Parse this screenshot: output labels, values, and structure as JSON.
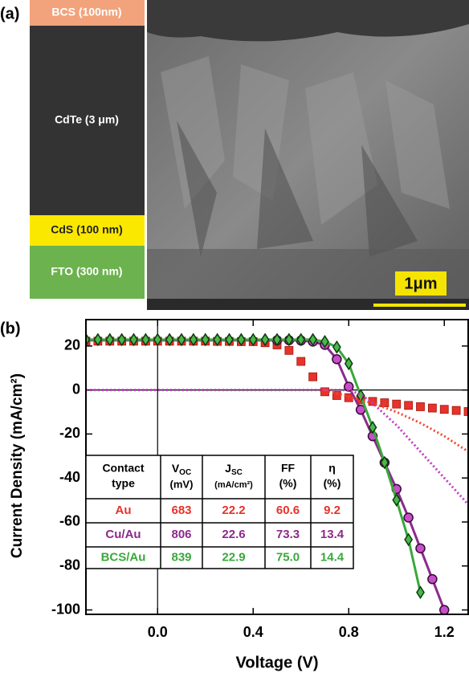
{
  "panel_a": {
    "label": "(a)",
    "layers": [
      {
        "label": "BCS (100nm)",
        "color": "#f2a37c",
        "text_color": "#ffffff"
      },
      {
        "label": "CdTe (3 μm)",
        "color": "#333333",
        "text_color": "#ffffff"
      },
      {
        "label": "CdS (100 nm)",
        "color": "#fbe800",
        "text_color": "#222222"
      },
      {
        "label": "FTO (300 nm)",
        "color": "#6cb24e",
        "text_color": "#ffffff"
      }
    ],
    "scale_bar": "1μm"
  },
  "chart_data": {
    "type": "line",
    "label": "(b)",
    "xlabel": "Voltage (V)",
    "ylabel": "Current Density (mA/cm²)",
    "xlim": [
      -0.3,
      1.3
    ],
    "ylim": [
      -102,
      32
    ],
    "xticks": [
      {
        "value": 0,
        "label": "0.0"
      },
      0.4,
      0.8,
      1.2
    ],
    "yticks": [
      20,
      0,
      -20,
      -40,
      -60,
      -80,
      -100
    ],
    "series": [
      {
        "name": "Au",
        "color": "#e8322a",
        "marker": "square",
        "style": "solid-markers",
        "x": [
          -0.3,
          -0.25,
          -0.2,
          -0.15,
          -0.1,
          -0.05,
          0,
          0.05,
          0.1,
          0.15,
          0.2,
          0.25,
          0.3,
          0.35,
          0.4,
          0.45,
          0.5,
          0.55,
          0.6,
          0.65,
          0.7,
          0.75,
          0.8,
          0.85,
          0.9,
          0.95,
          1.0,
          1.05,
          1.1,
          1.15,
          1.2,
          1.25,
          1.3
        ],
        "values": [
          22.2,
          22.2,
          22.2,
          22.2,
          22.2,
          22.2,
          22.2,
          22.2,
          22.2,
          22.2,
          22.2,
          22.1,
          22.1,
          22.0,
          22.0,
          21.5,
          20.5,
          18,
          13,
          6,
          -0.8,
          -2.5,
          -3.5,
          -4.5,
          -5.2,
          -5.8,
          -6.4,
          -7,
          -7.6,
          -8.2,
          -8.8,
          -9.3,
          -9.8
        ]
      },
      {
        "name": "Cu/Au",
        "color": "#8c2a8c",
        "marker_color": "#c74fc7",
        "marker": "circle",
        "style": "line-markers",
        "x": [
          -0.3,
          -0.2,
          -0.1,
          0,
          0.1,
          0.2,
          0.3,
          0.4,
          0.5,
          0.55,
          0.6,
          0.65,
          0.7,
          0.75,
          0.8,
          0.85,
          0.9,
          0.95,
          1.0,
          1.05,
          1.1,
          1.15,
          1.2
        ],
        "values": [
          22.6,
          22.6,
          22.6,
          22.6,
          22.6,
          22.6,
          22.6,
          22.6,
          22.6,
          22.6,
          22.5,
          22,
          20.5,
          14,
          1.5,
          -9,
          -21,
          -33,
          -45,
          -58,
          -72,
          -86,
          -100
        ]
      },
      {
        "name": "BCS/Au",
        "color": "#3aa83c",
        "marker_color": "#49b84a",
        "marker": "diamond",
        "style": "line-markers",
        "x": [
          -0.3,
          -0.25,
          -0.2,
          -0.15,
          -0.1,
          -0.05,
          0,
          0.05,
          0.1,
          0.15,
          0.2,
          0.25,
          0.3,
          0.35,
          0.4,
          0.45,
          0.5,
          0.55,
          0.6,
          0.65,
          0.7,
          0.75,
          0.8,
          0.85,
          0.9,
          0.95,
          1.0,
          1.05,
          1.1
        ],
        "values": [
          22.9,
          22.9,
          22.9,
          22.9,
          22.9,
          22.9,
          22.9,
          22.9,
          22.9,
          22.9,
          22.9,
          22.9,
          22.9,
          22.9,
          22.9,
          22.9,
          22.9,
          22.9,
          22.9,
          22.9,
          22,
          19.5,
          12,
          -2.5,
          -17,
          -33,
          -50,
          -68,
          -92
        ]
      },
      {
        "color": "#f04a30",
        "style": "dotted",
        "x": [
          0.7,
          0.8,
          0.9,
          1.0,
          1.1,
          1.2,
          1.3
        ],
        "values": [
          0,
          -3,
          -6,
          -10,
          -15,
          -21,
          -28
        ]
      },
      {
        "color": "#c03cc0",
        "style": "dotted",
        "x": [
          -0.3,
          0,
          0.3,
          0.6,
          0.8,
          0.85,
          0.9,
          1.0,
          1.1,
          1.2,
          1.3
        ],
        "values": [
          0,
          0,
          0,
          0,
          0,
          -2,
          -6,
          -16,
          -28,
          -40,
          -52
        ]
      }
    ],
    "table": {
      "header": [
        {
          "lines": [
            "Contact",
            "type"
          ]
        },
        {
          "text": "V",
          "sub": "OC",
          "unit": "(mV)"
        },
        {
          "text": "J",
          "sub": "SC",
          "unit": "(mA/cm²)"
        },
        {
          "lines": [
            "FF",
            "(%)"
          ]
        },
        {
          "lines": [
            "η",
            "(%)"
          ]
        }
      ],
      "rows": [
        [
          "Au",
          "683",
          "22.2",
          "60.6",
          "9.2"
        ],
        [
          "Cu/Au",
          "806",
          "22.6",
          "73.3",
          "13.4"
        ],
        [
          "BCS/Au",
          "839",
          "22.9",
          "75.0",
          "14.4"
        ]
      ],
      "row_colors": [
        "#e8322a",
        "#8c2a8c",
        "#3aa83c"
      ]
    }
  }
}
